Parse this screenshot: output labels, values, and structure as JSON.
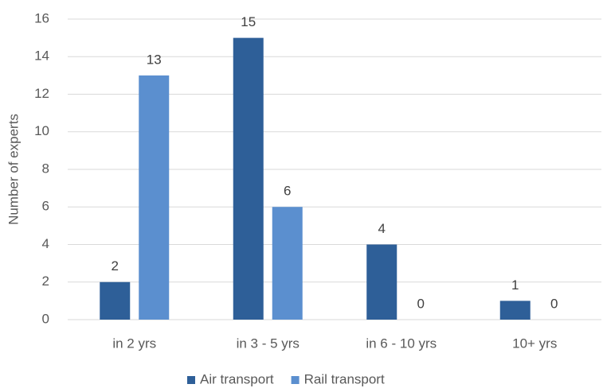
{
  "chart_data": {
    "type": "bar",
    "y_label": "Number of experts",
    "categories": [
      "in 2 yrs",
      "in 3 - 5 yrs",
      "in 6 - 10 yrs",
      "10+ yrs"
    ],
    "series": [
      {
        "name": "Air transport",
        "color": "#2e5f98",
        "values": [
          2,
          15,
          4,
          1
        ]
      },
      {
        "name": "Rail transport",
        "color": "#5b8fcf",
        "values": [
          13,
          6,
          0,
          0
        ]
      }
    ],
    "ylim": [
      0,
      16
    ],
    "yticks": [
      0,
      2,
      4,
      6,
      8,
      10,
      12,
      14,
      16
    ],
    "grid": true,
    "legend": "bottom"
  }
}
